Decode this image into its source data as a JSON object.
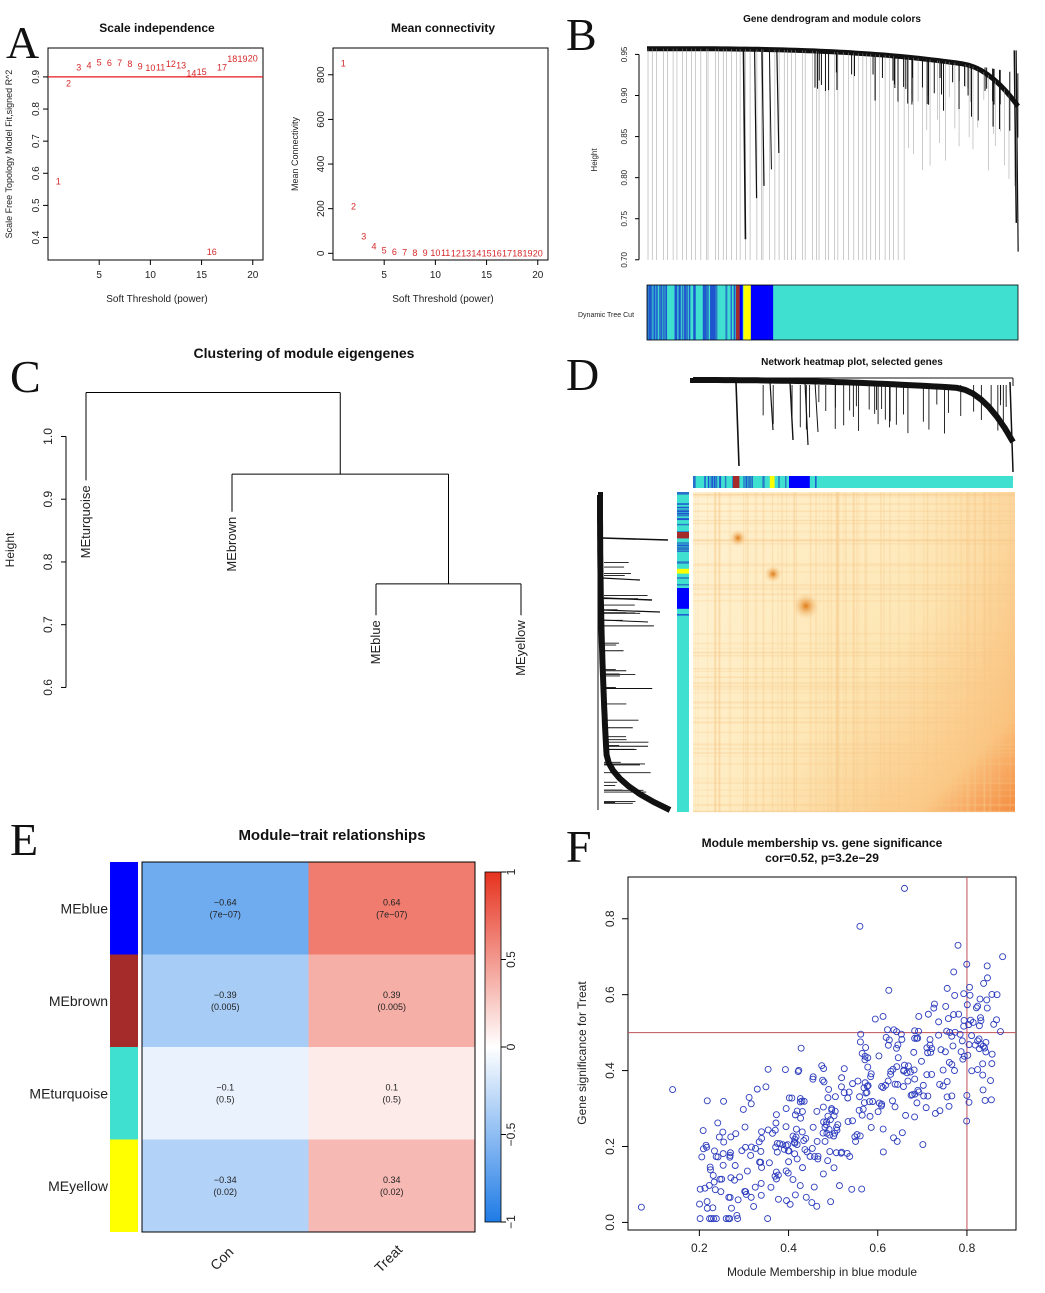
{
  "panel_letters": [
    "A",
    "B",
    "C",
    "D",
    "E",
    "F"
  ],
  "chart_data": [
    {
      "id": "A1",
      "type": "scatter",
      "title": "Scale independence",
      "xlabel": "Soft Threshold (power)",
      "ylabel": "Scale Free Topology Model Fit,signed R^2",
      "xlim": [
        0,
        21
      ],
      "ylim": [
        0.33,
        0.99
      ],
      "xticks": [
        5,
        10,
        15,
        20
      ],
      "yticks": [
        0.4,
        0.5,
        0.6,
        0.7,
        0.8,
        0.9
      ],
      "hline": 0.9,
      "points": [
        {
          "x": 1,
          "y": 0.575,
          "label": "1"
        },
        {
          "x": 2,
          "y": 0.88,
          "label": "2"
        },
        {
          "x": 3,
          "y": 0.93,
          "label": "3"
        },
        {
          "x": 4,
          "y": 0.935,
          "label": "4"
        },
        {
          "x": 5,
          "y": 0.945,
          "label": "5"
        },
        {
          "x": 6,
          "y": 0.943,
          "label": "6"
        },
        {
          "x": 7,
          "y": 0.944,
          "label": "7"
        },
        {
          "x": 8,
          "y": 0.94,
          "label": "8"
        },
        {
          "x": 9,
          "y": 0.932,
          "label": "9"
        },
        {
          "x": 10,
          "y": 0.927,
          "label": "10"
        },
        {
          "x": 11,
          "y": 0.93,
          "label": "11"
        },
        {
          "x": 12,
          "y": 0.94,
          "label": "12"
        },
        {
          "x": 13,
          "y": 0.935,
          "label": "13"
        },
        {
          "x": 14,
          "y": 0.91,
          "label": "14"
        },
        {
          "x": 15,
          "y": 0.915,
          "label": "15"
        },
        {
          "x": 16,
          "y": 0.355,
          "label": "16"
        },
        {
          "x": 17,
          "y": 0.93,
          "label": "17"
        },
        {
          "x": 18,
          "y": 0.955,
          "label": "18"
        },
        {
          "x": 19,
          "y": 0.955,
          "label": "19"
        },
        {
          "x": 20,
          "y": 0.957,
          "label": "20"
        }
      ]
    },
    {
      "id": "A2",
      "type": "scatter",
      "title": "Mean connectivity",
      "xlabel": "Soft Threshold (power)",
      "ylabel": "Mean Connectivity",
      "xlim": [
        0,
        21
      ],
      "ylim": [
        -30,
        920
      ],
      "xticks": [
        5,
        10,
        15,
        20
      ],
      "yticks": [
        0,
        200,
        400,
        600,
        800
      ],
      "points": [
        {
          "x": 1,
          "y": 850,
          "label": "1"
        },
        {
          "x": 2,
          "y": 210,
          "label": "2"
        },
        {
          "x": 3,
          "y": 75,
          "label": "3"
        },
        {
          "x": 4,
          "y": 30,
          "label": "4"
        },
        {
          "x": 5,
          "y": 12,
          "label": "5"
        },
        {
          "x": 6,
          "y": 6,
          "label": "6"
        },
        {
          "x": 7,
          "y": 3,
          "label": "7"
        },
        {
          "x": 8,
          "y": 2,
          "label": "8"
        },
        {
          "x": 9,
          "y": 1,
          "label": "9"
        },
        {
          "x": 10,
          "y": 0.5,
          "label": "10"
        },
        {
          "x": 11,
          "y": 0.3,
          "label": "11"
        },
        {
          "x": 12,
          "y": 0.2,
          "label": "12"
        },
        {
          "x": 13,
          "y": 0.1,
          "label": "13"
        },
        {
          "x": 14,
          "y": 0.1,
          "label": "14"
        },
        {
          "x": 15,
          "y": 0.1,
          "label": "15"
        },
        {
          "x": 16,
          "y": 0.1,
          "label": "16"
        },
        {
          "x": 17,
          "y": 0.1,
          "label": "17"
        },
        {
          "x": 18,
          "y": 0.1,
          "label": "18"
        },
        {
          "x": 19,
          "y": 0.1,
          "label": "19"
        },
        {
          "x": 20,
          "y": 0.1,
          "label": "20"
        }
      ]
    },
    {
      "id": "B",
      "type": "dendrogram",
      "title": "Gene dendrogram and module colors",
      "ylabel": "Height",
      "yticks": [
        0.7,
        0.75,
        0.8,
        0.85,
        0.9,
        0.95
      ],
      "ylim": [
        0.69,
        0.97
      ],
      "color_bar_label": "Dynamic Tree Cut",
      "module_colors": {
        "turquoise": "#40e0d0",
        "brown": "#a52a2a",
        "yellow": "#ffff00",
        "blue": "#0000ff"
      }
    },
    {
      "id": "C",
      "type": "dendrogram",
      "title": "Clustering of module eigengenes",
      "ylabel": "Height",
      "yticks": [
        0.6,
        0.7,
        0.8,
        0.9,
        1.0
      ],
      "ylim": [
        0.58,
        1.09
      ],
      "leaves": [
        "MEturquoise",
        "MEbrown",
        "MEblue",
        "MEyellow"
      ],
      "merges": [
        {
          "height": 0.765,
          "children": [
            "MEblue",
            "MEyellow"
          ]
        },
        {
          "height": 0.94,
          "children": [
            "MEbrown",
            "blue-yellow"
          ]
        },
        {
          "height": 1.07,
          "children": [
            "MEturquoise",
            "brown-blue-yellow"
          ]
        }
      ]
    },
    {
      "id": "D",
      "type": "heatmap",
      "title": "Network heatmap plot, selected genes"
    },
    {
      "id": "E",
      "type": "heatmap",
      "title": "Module−trait relationships",
      "columns": [
        "Con",
        "Treat"
      ],
      "rows": [
        "MEblue",
        "MEbrown",
        "MEturquoise",
        "MEyellow"
      ],
      "row_colors": [
        "#0000ff",
        "#a52a2a",
        "#40e0d0",
        "#ffff00"
      ],
      "cells": [
        [
          {
            "value": -0.64,
            "text": "−0.64",
            "p": "(7e−07)"
          },
          {
            "value": 0.64,
            "text": "0.64",
            "p": "(7e−07)"
          }
        ],
        [
          {
            "value": -0.39,
            "text": "−0.39",
            "p": "(0.005)"
          },
          {
            "value": 0.39,
            "text": "0.39",
            "p": "(0.005)"
          }
        ],
        [
          {
            "value": -0.1,
            "text": "−0.1",
            "p": "(0.5)"
          },
          {
            "value": 0.1,
            "text": "0.1",
            "p": "(0.5)"
          }
        ],
        [
          {
            "value": -0.34,
            "text": "−0.34",
            "p": "(0.02)"
          },
          {
            "value": 0.34,
            "text": "0.34",
            "p": "(0.02)"
          }
        ]
      ],
      "colorbar_ticks": [
        "1",
        "0.5",
        "0",
        "−0.5",
        "−1"
      ],
      "colorbar_range": [
        -1,
        1
      ]
    },
    {
      "id": "F",
      "type": "scatter",
      "title": "Module membership vs. gene significance",
      "subtitle": "cor=0.52, p=3.2e−29",
      "xlabel": "Module Membership in blue module",
      "ylabel": "Gene significance for  Treat",
      "xlim": [
        0.04,
        0.91
      ],
      "ylim": [
        -0.02,
        0.91
      ],
      "xticks": [
        0.2,
        0.4,
        0.6,
        0.8
      ],
      "yticks": [
        0.0,
        0.2,
        0.4,
        0.6,
        0.8
      ],
      "vline": 0.8,
      "hline": 0.5,
      "n_points": 400,
      "correlation": 0.52,
      "notable_points": [
        {
          "x": 0.07,
          "y": 0.04
        },
        {
          "x": 0.14,
          "y": 0.35
        },
        {
          "x": 0.66,
          "y": 0.88
        },
        {
          "x": 0.56,
          "y": 0.78
        },
        {
          "x": 0.88,
          "y": 0.7
        },
        {
          "x": 0.78,
          "y": 0.73
        }
      ]
    }
  ]
}
